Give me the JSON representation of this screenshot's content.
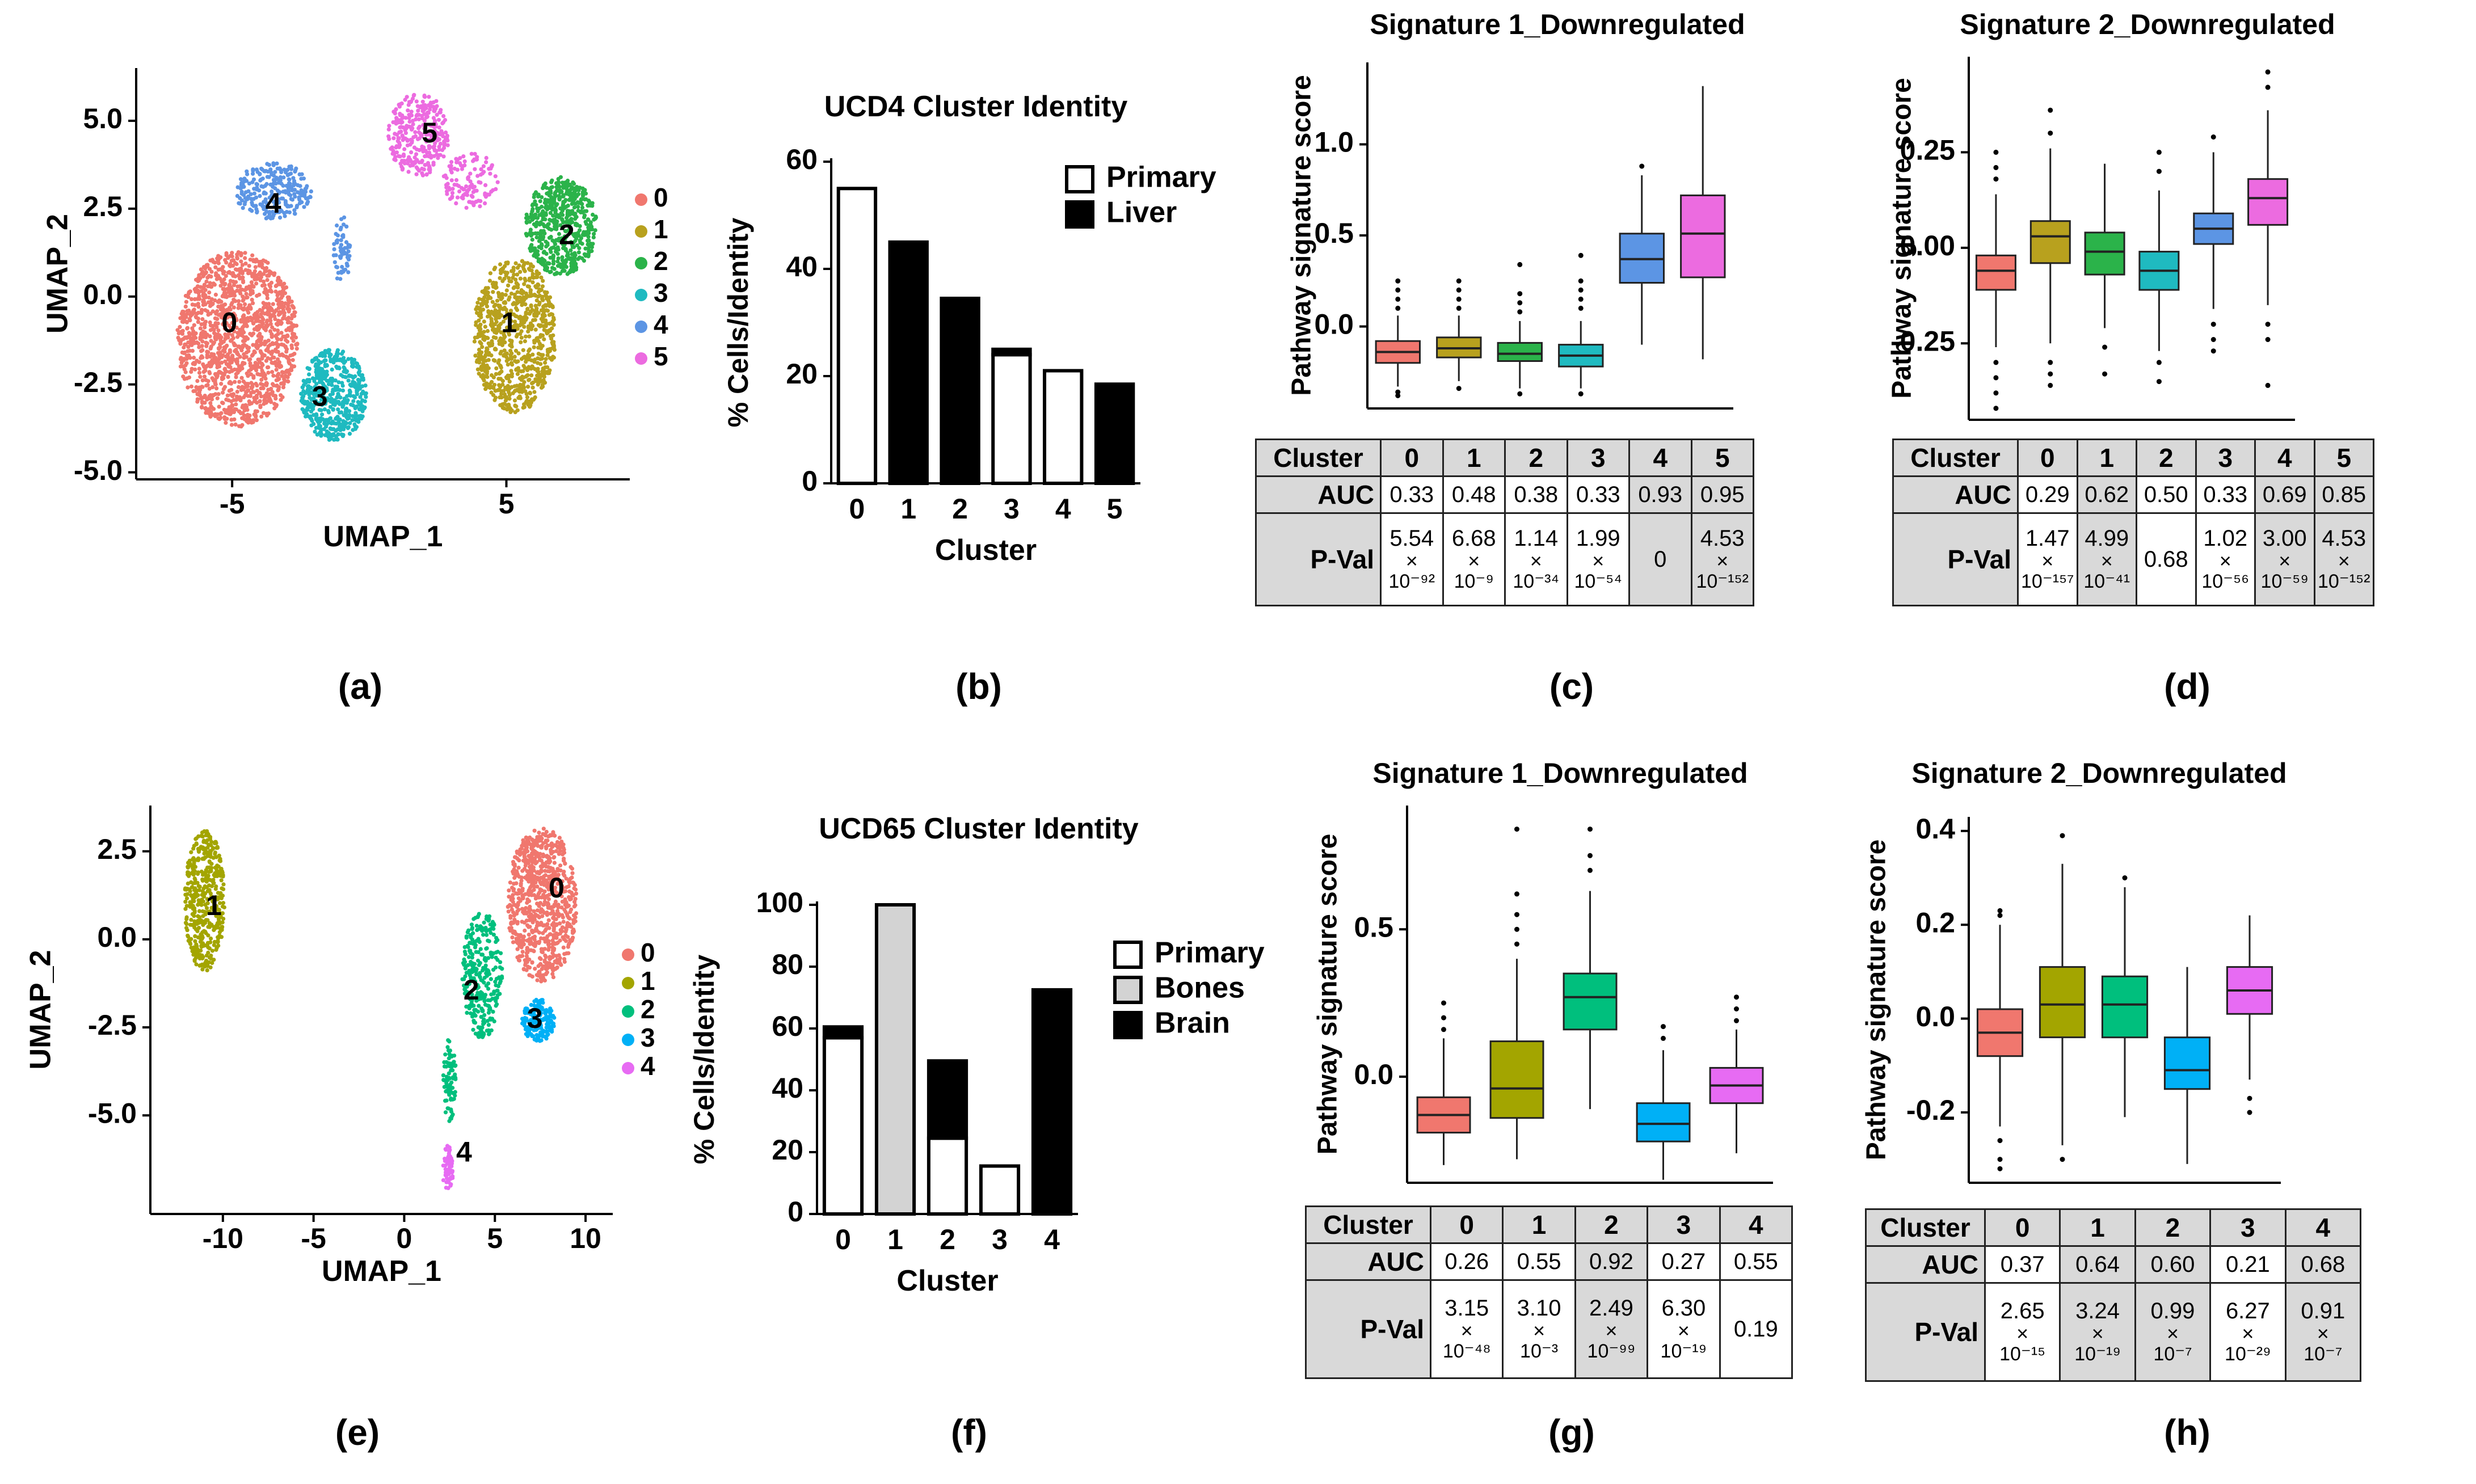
{
  "panel_labels": [
    "(a)",
    "(b)",
    "(c)",
    "(d)",
    "(e)",
    "(f)",
    "(g)",
    "(h)"
  ],
  "chart_data": [
    {
      "id": "a",
      "type": "scatter",
      "xlabel": "UMAP_1",
      "ylabel": "UMAP_2",
      "xticks": [
        -5,
        5
      ],
      "yticks": [
        "5.0",
        "2.5",
        "0.0",
        "-2.5",
        "-5.0"
      ],
      "xlim": [
        -8.5,
        9.5
      ],
      "ylim": [
        -5.2,
        6.5
      ],
      "legend": [
        "0",
        "1",
        "2",
        "3",
        "4",
        "5"
      ],
      "colors": [
        "#F0776E",
        "#B8A11E",
        "#2BB34A",
        "#1FBAC0",
        "#5C95E4",
        "#EC6BE0"
      ],
      "clusters": [
        {
          "label": "0",
          "blobs": [
            [
              -4.8,
              -1.2,
              2.2,
              2.5,
              1400
            ]
          ]
        },
        {
          "label": "1",
          "blobs": [
            [
              5.3,
              -1.1,
              1.5,
              2.2,
              800
            ]
          ]
        },
        {
          "label": "2",
          "blobs": [
            [
              7.0,
              2.0,
              1.3,
              1.4,
              550
            ]
          ]
        },
        {
          "label": "3",
          "blobs": [
            [
              -1.3,
              -2.8,
              1.2,
              1.3,
              500
            ]
          ]
        },
        {
          "label": "4",
          "blobs": [
            [
              -3.5,
              3.0,
              1.4,
              0.8,
              250
            ],
            [
              -1.0,
              1.3,
              0.3,
              1.0,
              60
            ]
          ]
        },
        {
          "label": "5",
          "blobs": [
            [
              1.8,
              4.6,
              1.1,
              1.2,
              300
            ],
            [
              3.7,
              3.3,
              1.0,
              0.8,
              120
            ]
          ]
        }
      ],
      "cluster_labels": [
        {
          "text": "0",
          "x": -5.1,
          "y": -0.8
        },
        {
          "text": "1",
          "x": 5.1,
          "y": -0.8
        },
        {
          "text": "2",
          "x": 7.2,
          "y": 1.7
        },
        {
          "text": "3",
          "x": -1.8,
          "y": -2.9
        },
        {
          "text": "4",
          "x": -3.5,
          "y": 2.6
        },
        {
          "text": "5",
          "x": 2.2,
          "y": 4.6
        }
      ]
    },
    {
      "id": "b",
      "type": "bar",
      "title": "UCD4 Cluster Identity",
      "xlabel": "Cluster",
      "ylabel": "% Cells/Identity",
      "categories": [
        "0",
        "1",
        "2",
        "3",
        "4",
        "5"
      ],
      "yticks": [
        0,
        20,
        40,
        60
      ],
      "ylim": [
        0,
        60
      ],
      "legend": [
        {
          "name": "Primary",
          "color": "#ffffff"
        },
        {
          "name": "Liver",
          "color": "#000000"
        }
      ],
      "series": [
        {
          "name": "Primary",
          "values": [
            55,
            0,
            0,
            24,
            21,
            0
          ]
        },
        {
          "name": "Liver",
          "values": [
            0,
            45,
            34.5,
            1,
            0,
            18.5
          ]
        }
      ]
    },
    {
      "id": "c",
      "type": "box",
      "title": "Signature 1_Downregulated",
      "ylabel": "Pathway signature score",
      "categories": [
        "0",
        "1",
        "2",
        "3",
        "4",
        "5"
      ],
      "yticks": [
        "0.0",
        "0.5",
        "1.0"
      ],
      "ylim": [
        -0.45,
        1.45
      ],
      "colors": [
        "#F0776E",
        "#B8A11E",
        "#2BB34A",
        "#1FBAC0",
        "#5C95E4",
        "#EC6BE0"
      ],
      "boxes": [
        {
          "whislo": -0.33,
          "q1": -0.2,
          "median": -0.14,
          "q3": -0.08,
          "whishi": 0.06,
          "fliers": [
            -0.36,
            -0.38,
            0.1,
            0.15,
            0.2,
            0.25
          ]
        },
        {
          "whislo": -0.3,
          "q1": -0.17,
          "median": -0.12,
          "q3": -0.06,
          "whishi": 0.06,
          "fliers": [
            -0.34,
            0.1,
            0.15,
            0.2,
            0.25
          ]
        },
        {
          "whislo": -0.34,
          "q1": -0.19,
          "median": -0.15,
          "q3": -0.09,
          "whishi": 0.03,
          "fliers": [
            -0.37,
            0.08,
            0.13,
            0.18,
            0.34
          ]
        },
        {
          "whislo": -0.34,
          "q1": -0.22,
          "median": -0.16,
          "q3": -0.1,
          "whishi": 0.03,
          "fliers": [
            -0.37,
            0.1,
            0.15,
            0.2,
            0.25,
            0.39
          ]
        },
        {
          "whislo": -0.1,
          "q1": 0.24,
          "median": 0.37,
          "q3": 0.51,
          "whishi": 0.83,
          "fliers": [
            0.88
          ]
        },
        {
          "whislo": -0.18,
          "q1": 0.27,
          "median": 0.51,
          "q3": 0.72,
          "whishi": 1.32,
          "fliers": []
        }
      ],
      "table": {
        "header": "Cluster",
        "auc_label": "AUC",
        "pval_label": "P-Val",
        "clusters": [
          "0",
          "1",
          "2",
          "3",
          "4",
          "5"
        ],
        "auc": [
          "0.33",
          "0.48",
          "0.38",
          "0.33",
          "0.93",
          "0.95"
        ],
        "pval": [
          {
            "m": "5.54",
            "x": "×",
            "e": "10⁻⁹²"
          },
          {
            "m": "6.68",
            "x": "×",
            "e": "10⁻⁹"
          },
          {
            "m": "1.14",
            "x": "×",
            "e": "10⁻³⁴"
          },
          {
            "m": "1.99",
            "x": "×",
            "e": "10⁻⁵⁴"
          },
          {
            "m": "0"
          },
          {
            "m": "4.53",
            "x": "×",
            "e": "10⁻¹⁵²"
          }
        ],
        "shaded": [
          false,
          false,
          false,
          false,
          true,
          true
        ]
      }
    },
    {
      "id": "d",
      "type": "box",
      "title": "Signature 2_Downregulated",
      "ylabel": "Pathway signature score",
      "categories": [
        "0",
        "1",
        "2",
        "3",
        "4",
        "5"
      ],
      "yticks": [
        "0.25",
        "0.00",
        "-0.25"
      ],
      "ylim": [
        -0.45,
        0.5
      ],
      "colors": [
        "#F0776E",
        "#B8A11E",
        "#2BB34A",
        "#1FBAC0",
        "#5C95E4",
        "#EC6BE0"
      ],
      "boxes": [
        {
          "whislo": -0.26,
          "q1": -0.11,
          "median": -0.06,
          "q3": -0.02,
          "whishi": 0.14,
          "fliers": [
            -0.3,
            -0.34,
            -0.38,
            -0.42,
            0.18,
            0.21,
            0.25
          ]
        },
        {
          "whislo": -0.25,
          "q1": -0.04,
          "median": 0.03,
          "q3": 0.07,
          "whishi": 0.26,
          "fliers": [
            -0.3,
            -0.33,
            -0.36,
            0.3,
            0.36
          ]
        },
        {
          "whislo": -0.21,
          "q1": -0.07,
          "median": -0.01,
          "q3": 0.04,
          "whishi": 0.22,
          "fliers": [
            -0.26,
            -0.33
          ]
        },
        {
          "whislo": -0.27,
          "q1": -0.11,
          "median": -0.06,
          "q3": -0.01,
          "whishi": 0.15,
          "fliers": [
            -0.3,
            -0.35,
            0.2,
            0.25
          ]
        },
        {
          "whislo": -0.16,
          "q1": 0.01,
          "median": 0.05,
          "q3": 0.09,
          "whishi": 0.25,
          "fliers": [
            -0.2,
            -0.24,
            -0.27,
            0.29
          ]
        },
        {
          "whislo": -0.15,
          "q1": 0.06,
          "median": 0.13,
          "q3": 0.18,
          "whishi": 0.36,
          "fliers": [
            -0.2,
            -0.24,
            -0.36,
            0.42,
            0.46
          ]
        }
      ],
      "table": {
        "header": "Cluster",
        "auc_label": "AUC",
        "pval_label": "P-Val",
        "clusters": [
          "0",
          "1",
          "2",
          "3",
          "4",
          "5"
        ],
        "auc": [
          "0.29",
          "0.62",
          "0.50",
          "0.33",
          "0.69",
          "0.85"
        ],
        "pval": [
          {
            "m": "1.47",
            "x": "×",
            "e": "10⁻¹⁵⁷"
          },
          {
            "m": "4.99",
            "x": "×",
            "e": "10⁻⁴¹"
          },
          {
            "m": "0.68"
          },
          {
            "m": "1.02",
            "x": "×",
            "e": "10⁻⁵⁶"
          },
          {
            "m": "3.00",
            "x": "×",
            "e": "10⁻⁵⁹"
          },
          {
            "m": "4.53",
            "x": "×",
            "e": "10⁻¹⁵²"
          }
        ],
        "shaded": [
          false,
          true,
          false,
          false,
          true,
          true
        ]
      }
    },
    {
      "id": "e",
      "type": "scatter",
      "xlabel": "UMAP_1",
      "ylabel": "UMAP_2",
      "xticks": [
        -10,
        -5,
        0,
        5,
        10
      ],
      "yticks": [
        "2.5",
        "0.0",
        "-2.5",
        "-5.0"
      ],
      "xlim": [
        -14,
        11.5
      ],
      "ylim": [
        -7.8,
        3.8
      ],
      "legend": [
        "0",
        "1",
        "2",
        "3",
        "4"
      ],
      "colors": [
        "#F0776E",
        "#A3A500",
        "#00BF7D",
        "#00B0F6",
        "#E76BF3"
      ],
      "clusters": [
        {
          "label": "0",
          "blobs": [
            [
              7.6,
              1.0,
              1.9,
              2.2,
              800
            ]
          ]
        },
        {
          "label": "1",
          "blobs": [
            [
              -11.0,
              1.1,
              1.1,
              2.0,
              450
            ]
          ]
        },
        {
          "label": "2",
          "blobs": [
            [
              4.3,
              -1.0,
              1.1,
              1.8,
              300
            ],
            [
              2.5,
              -4.0,
              0.35,
              1.2,
              80
            ]
          ]
        },
        {
          "label": "3",
          "blobs": [
            [
              7.4,
              -2.3,
              0.9,
              0.6,
              180
            ]
          ]
        },
        {
          "label": "4",
          "blobs": [
            [
              2.4,
              -6.5,
              0.3,
              0.7,
              70
            ]
          ]
        }
      ],
      "cluster_labels": [
        {
          "text": "0",
          "x": 8.4,
          "y": 1.4
        },
        {
          "text": "1",
          "x": -10.5,
          "y": 0.9
        },
        {
          "text": "2",
          "x": 3.7,
          "y": -1.5
        },
        {
          "text": "3",
          "x": 7.2,
          "y": -2.3
        },
        {
          "text": "4",
          "x": 3.3,
          "y": -6.1
        }
      ]
    },
    {
      "id": "f",
      "type": "bar",
      "title": "UCD65 Cluster Identity",
      "xlabel": "Cluster",
      "ylabel": "% Cells/Identity",
      "categories": [
        "0",
        "1",
        "2",
        "3",
        "4"
      ],
      "yticks": [
        0,
        20,
        40,
        60,
        80,
        100
      ],
      "ylim": [
        0,
        100
      ],
      "legend": [
        {
          "name": "Primary",
          "color": "#ffffff"
        },
        {
          "name": "Bones",
          "color": "#d3d3d3"
        },
        {
          "name": "Brain",
          "color": "#000000"
        }
      ],
      "series": [
        {
          "name": "Primary",
          "values": [
            57,
            0,
            24.5,
            15.5,
            0
          ]
        },
        {
          "name": "Bones",
          "values": [
            0,
            100,
            0,
            0,
            0
          ]
        },
        {
          "name": "Brain",
          "values": [
            3.5,
            0,
            25,
            0,
            72.5
          ]
        }
      ]
    },
    {
      "id": "g",
      "type": "box",
      "title": "Signature 1_Downregulated",
      "ylabel": "Pathway signature score",
      "categories": [
        "0",
        "1",
        "2",
        "3",
        "4"
      ],
      "yticks": [
        "0.0",
        "0.5"
      ],
      "ylim": [
        -0.36,
        0.92
      ],
      "colors": [
        "#F0776E",
        "#A3A500",
        "#00BF7D",
        "#00B0F6",
        "#E76BF3"
      ],
      "boxes": [
        {
          "whislo": -0.3,
          "q1": -0.19,
          "median": -0.13,
          "q3": -0.07,
          "whishi": 0.13,
          "fliers": [
            0.16,
            0.2,
            0.25
          ]
        },
        {
          "whislo": -0.28,
          "q1": -0.14,
          "median": -0.04,
          "q3": 0.12,
          "whishi": 0.4,
          "fliers": [
            0.45,
            0.5,
            0.55,
            0.62,
            0.84
          ]
        },
        {
          "whislo": -0.11,
          "q1": 0.16,
          "median": 0.27,
          "q3": 0.35,
          "whishi": 0.63,
          "fliers": [
            0.7,
            0.75,
            0.84
          ]
        },
        {
          "whislo": -0.35,
          "q1": -0.22,
          "median": -0.16,
          "q3": -0.09,
          "whishi": 0.09,
          "fliers": [
            0.13,
            0.17
          ]
        },
        {
          "whislo": -0.26,
          "q1": -0.09,
          "median": -0.03,
          "q3": 0.03,
          "whishi": 0.16,
          "fliers": [
            0.19,
            0.23,
            0.27
          ]
        }
      ],
      "table": {
        "header": "Cluster",
        "auc_label": "AUC",
        "pval_label": "P-Val",
        "clusters": [
          "0",
          "1",
          "2",
          "3",
          "4"
        ],
        "auc": [
          "0.26",
          "0.55",
          "0.92",
          "0.27",
          "0.55"
        ],
        "pval": [
          {
            "m": "3.15",
            "x": "×",
            "e": "10⁻⁴⁸"
          },
          {
            "m": "3.10",
            "x": "×",
            "e": "10⁻³"
          },
          {
            "m": "2.49",
            "x": "×",
            "e": "10⁻⁹⁹"
          },
          {
            "m": "6.30",
            "x": "×",
            "e": "10⁻¹⁹"
          },
          {
            "m": "0.19"
          }
        ],
        "shaded": [
          false,
          false,
          true,
          false,
          false
        ]
      }
    },
    {
      "id": "h",
      "type": "box",
      "title": "Signature 2_Downregulated",
      "ylabel": "Pathway signature score",
      "categories": [
        "0",
        "1",
        "2",
        "3",
        "4"
      ],
      "yticks": [
        "0.4",
        "0.2",
        "0.0",
        "-0.2"
      ],
      "ylim": [
        -0.35,
        0.43
      ],
      "colors": [
        "#F0776E",
        "#A3A500",
        "#00BF7D",
        "#00B0F6",
        "#E76BF3"
      ],
      "boxes": [
        {
          "whislo": -0.23,
          "q1": -0.08,
          "median": -0.03,
          "q3": 0.02,
          "whishi": 0.2,
          "fliers": [
            -0.26,
            -0.3,
            -0.32,
            0.22,
            0.23
          ]
        },
        {
          "whislo": -0.27,
          "q1": -0.04,
          "median": 0.03,
          "q3": 0.11,
          "whishi": 0.33,
          "fliers": [
            -0.3,
            0.39
          ]
        },
        {
          "whislo": -0.21,
          "q1": -0.04,
          "median": 0.03,
          "q3": 0.09,
          "whishi": 0.28,
          "fliers": [
            0.3
          ]
        },
        {
          "whislo": -0.31,
          "q1": -0.15,
          "median": -0.11,
          "q3": -0.04,
          "whishi": 0.11,
          "fliers": []
        },
        {
          "whislo": -0.13,
          "q1": 0.01,
          "median": 0.06,
          "q3": 0.11,
          "whishi": 0.22,
          "fliers": [
            -0.17,
            -0.2
          ]
        }
      ],
      "table": {
        "header": "Cluster",
        "auc_label": "AUC",
        "pval_label": "P-Val",
        "clusters": [
          "0",
          "1",
          "2",
          "3",
          "4"
        ],
        "auc": [
          "0.37",
          "0.64",
          "0.60",
          "0.21",
          "0.68"
        ],
        "pval": [
          {
            "m": "2.65",
            "x": "×",
            "e": "10⁻¹⁵"
          },
          {
            "m": "3.24",
            "x": "×",
            "e": "10⁻¹⁹"
          },
          {
            "m": "0.99",
            "x": "×",
            "e": "10⁻⁷"
          },
          {
            "m": "6.27",
            "x": "×",
            "e": "10⁻²⁹"
          },
          {
            "m": "0.91",
            "x": "×",
            "e": "10⁻⁷"
          }
        ],
        "shaded": [
          false,
          true,
          true,
          false,
          true
        ]
      }
    }
  ]
}
